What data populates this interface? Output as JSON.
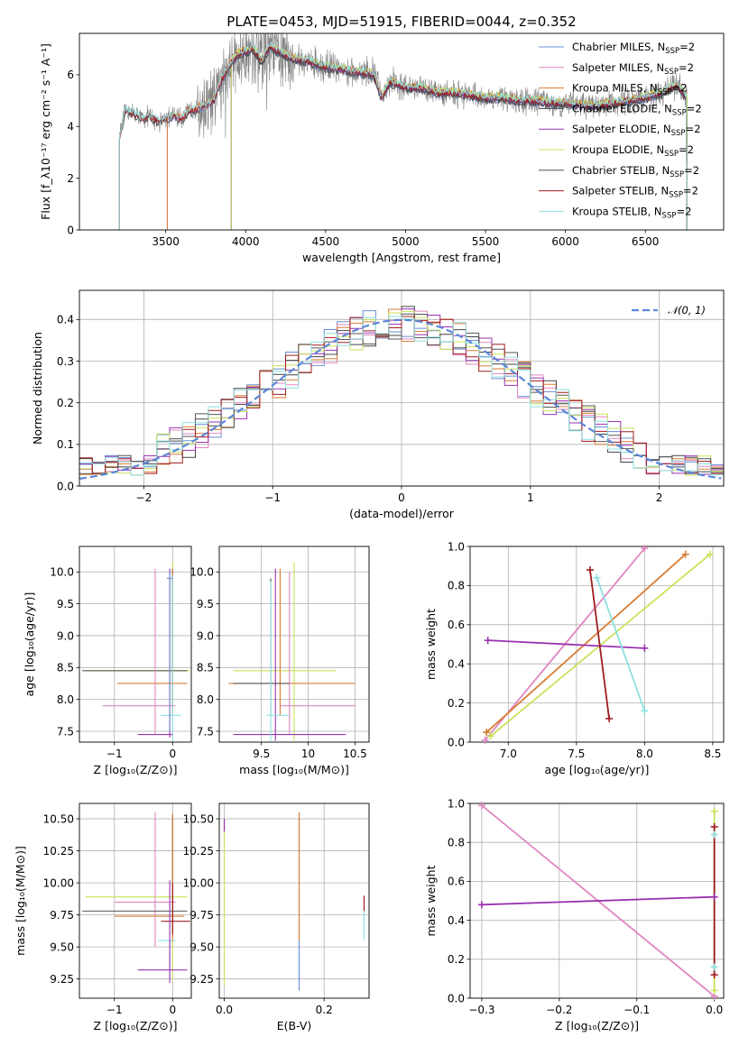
{
  "title": "PLATE=0453, MJD=51915, FIBERID=0044, z=0.352",
  "series_colors": {
    "Chabrier MILES": "#6a8fd4",
    "Salpeter MILES": "#e086c0",
    "Kroupa MILES": "#d97c33",
    "Chabrier ELODIE": "#444444",
    "Salpeter ELODIE": "#9a32b0",
    "Kroupa ELODIE": "#c9e35a",
    "Chabrier STELIB": "#555555",
    "Salpeter STELIB": "#a01d20",
    "Kroupa STELIB": "#8ee0e0"
  },
  "chart_data": [
    {
      "id": "spectrum",
      "type": "line",
      "xlabel": "wavelength [Angstrom, rest frame]",
      "ylabel": "Flux [f_λ10⁻¹⁷ erg cm⁻² s⁻¹ A⁻¹]",
      "xlim": [
        2960,
        6990
      ],
      "ylim": [
        0,
        7.6
      ],
      "xticks": [
        3500,
        4000,
        4500,
        5000,
        5500,
        6000,
        6500
      ],
      "yticks": [
        0,
        2,
        4,
        6
      ],
      "legend_placement": "upper-right",
      "legend": [
        "Chabrier MILES, N_SSP=2",
        "Salpeter MILES, N_SSP=2",
        "Kroupa MILES, N_SSP=2",
        "Chabrier ELODIE, N_SSP=2",
        "Salpeter ELODIE, N_SSP=2",
        "Kroupa ELODIE, N_SSP=2",
        "Chabrier STELIB, N_SSP=2",
        "Salpeter STELIB, N_SSP=2",
        "Kroupa STELIB, N_SSP=2"
      ],
      "data_color": "#808080",
      "data_range": [
        3210,
        6760
      ],
      "model_envelope": {
        "x": [
          3210,
          3250,
          3300,
          3350,
          3400,
          3450,
          3500,
          3550,
          3600,
          3650,
          3700,
          3750,
          3800,
          3850,
          3900,
          3950,
          4000,
          4050,
          4100,
          4150,
          4200,
          4300,
          4400,
          4500,
          4600,
          4700,
          4800,
          4850,
          4900,
          5000,
          5100,
          5200,
          5300,
          5400,
          5500,
          5600,
          5700,
          5800,
          5900,
          6000,
          6100,
          6200,
          6300,
          6400,
          6500,
          6600,
          6700,
          6760
        ],
        "y": [
          3.6,
          4.6,
          4.5,
          4.3,
          4.4,
          4.2,
          4.3,
          4.4,
          4.3,
          4.6,
          4.7,
          4.8,
          5.0,
          5.8,
          6.4,
          6.8,
          6.9,
          7.0,
          6.5,
          7.1,
          6.9,
          6.6,
          6.5,
          6.3,
          6.2,
          6.1,
          6.0,
          5.1,
          5.7,
          5.5,
          5.5,
          5.3,
          5.3,
          5.2,
          5.1,
          5.1,
          5.0,
          5.0,
          4.9,
          4.9,
          4.8,
          4.8,
          4.9,
          5.0,
          5.1,
          5.3,
          5.6,
          5.1
        ]
      },
      "model_cutoffs": {
        "Kroupa MILES": 3510,
        "Salpeter MILES": 3510,
        "Chabrier MILES": 3510,
        "Kroupa ELODIE": 3910,
        "Salpeter ELODIE": 3910,
        "Chabrier ELODIE": 3910
      }
    },
    {
      "id": "residuals",
      "type": "bar",
      "xlabel": "(data-model)/error",
      "ylabel": "Normed distribution",
      "xlim": [
        -2.5,
        2.5
      ],
      "ylim": [
        0,
        0.47
      ],
      "xticks": [
        -2,
        -1,
        0,
        1,
        2
      ],
      "yticks": [
        0.0,
        0.1,
        0.2,
        0.3,
        0.4
      ],
      "grid": true,
      "legend": [
        "𝒩(0, 1)"
      ],
      "legend_placement": "upper-right",
      "gaussian": {
        "mu": 0,
        "sigma": 1,
        "color": "#5b87d9"
      },
      "bin_width": 0.1
    },
    {
      "id": "age_vs_Z",
      "type": "scatter",
      "xlabel": "Z [log₁₀(Z/Z⊙)]",
      "ylabel": "age  [log₁₀(age/yr)]",
      "xlim": [
        -1.6,
        0.32
      ],
      "ylim": [
        7.33,
        10.4
      ],
      "xticks": [
        -1,
        0
      ],
      "yticks": [
        7.5,
        8.0,
        8.5,
        9.0,
        9.5,
        10.0
      ],
      "grid": true,
      "points": [
        {
          "series": "Kroupa ELODIE",
          "x": -0.0,
          "y": 8.45,
          "xerr": [
            1.5,
            0.3
          ],
          "yerr": [
            0.6,
            1.7
          ]
        },
        {
          "series": "Chabrier STELIB",
          "x": 0.0,
          "y": 8.45,
          "xerr": [
            1.55,
            0.25
          ],
          "yerr": [
            0.6,
            1.6
          ]
        },
        {
          "series": "Kroupa MILES",
          "x": 0.0,
          "y": 8.25,
          "xerr": [
            0.95,
            0.25
          ],
          "yerr": [
            0.5,
            1.8
          ]
        },
        {
          "series": "Salpeter MILES",
          "x": -0.3,
          "y": 7.9,
          "xerr": [
            0.9,
            0.35
          ],
          "yerr": [
            0.45,
            2.15
          ]
        },
        {
          "series": "Kroupa STELIB",
          "x": 0.0,
          "y": 7.75,
          "xerr": [
            0.2,
            0.15
          ],
          "yerr": [
            0.4,
            2.2
          ]
        },
        {
          "series": "Salpeter ELODIE",
          "x": -0.05,
          "y": 7.45,
          "xerr": [
            0.55,
            0.05
          ],
          "yerr": [
            0.05,
            2.6
          ]
        },
        {
          "series": "Chabrier MILES",
          "x": -0.05,
          "y": 9.9,
          "xerr": [
            0.05,
            0.05
          ],
          "yerr": [
            2.4,
            0.1
          ]
        }
      ]
    },
    {
      "id": "age_vs_mass",
      "type": "scatter",
      "xlabel": "mass [log₁₀(M/M⊙)]",
      "ylabel": "",
      "xlim": [
        9.05,
        10.65
      ],
      "ylim": [
        7.33,
        10.4
      ],
      "xticks": [
        9.5,
        10.0,
        10.5
      ],
      "yticks": [
        7.5,
        8.0,
        8.5,
        9.0,
        9.5,
        10.0
      ],
      "grid": true,
      "points": [
        {
          "series": "Kroupa ELODIE",
          "x": 9.85,
          "y": 8.45,
          "xerr": [
            0.65,
            0.45
          ],
          "yerr": [
            1.1,
            1.7
          ]
        },
        {
          "series": "Kroupa MILES",
          "x": 9.7,
          "y": 8.25,
          "xerr": [
            0.55,
            0.8
          ],
          "yerr": [
            0.5,
            1.8
          ]
        },
        {
          "series": "Salpeter MILES",
          "x": 9.8,
          "y": 7.9,
          "xerr": [
            0.1,
            0.7
          ],
          "yerr": [
            0.45,
            2.1
          ]
        },
        {
          "series": "Salpeter ELODIE",
          "x": 9.65,
          "y": 7.45,
          "xerr": [
            0.45,
            0.75
          ],
          "yerr": [
            0.1,
            2.6
          ]
        },
        {
          "series": "Chabrier STELIB",
          "x": 9.6,
          "y": 8.25,
          "xerr": [
            0.4,
            0.2
          ],
          "yerr": [
            0.5,
            1.65
          ]
        },
        {
          "series": "Kroupa STELIB",
          "x": 9.6,
          "y": 7.75,
          "xerr": [
            0.05,
            0.2
          ],
          "yerr": [
            0.4,
            2.1
          ]
        }
      ]
    },
    {
      "id": "weight_vs_age",
      "type": "line",
      "xlabel": "age  [log₁₀(age/yr)]",
      "ylabel": "mass weight",
      "xlim": [
        6.72,
        8.58
      ],
      "ylim": [
        0.0,
        1.0
      ],
      "xticks": [
        7.0,
        7.5,
        8.0,
        8.5
      ],
      "yticks": [
        0.0,
        0.2,
        0.4,
        0.6,
        0.8,
        1.0
      ],
      "grid": true,
      "series": [
        {
          "name": "Salpeter MILES",
          "x": [
            6.83,
            8.0
          ],
          "y": [
            0.01,
            0.99
          ]
        },
        {
          "name": "Kroupa MILES",
          "x": [
            6.84,
            8.3
          ],
          "y": [
            0.05,
            0.96
          ]
        },
        {
          "name": "Kroupa ELODIE",
          "x": [
            6.87,
            8.48
          ],
          "y": [
            0.03,
            0.96
          ]
        },
        {
          "name": "Salpeter ELODIE",
          "x": [
            6.85,
            8.0
          ],
          "y": [
            0.52,
            0.48
          ]
        },
        {
          "name": "Salpeter STELIB",
          "x": [
            7.6,
            7.74
          ],
          "y": [
            0.88,
            0.12
          ]
        },
        {
          "name": "Kroupa STELIB",
          "x": [
            7.65,
            8.0
          ],
          "y": [
            0.84,
            0.16
          ]
        }
      ]
    },
    {
      "id": "mass_vs_Z",
      "type": "scatter",
      "xlabel": "Z [log₁₀(Z/Z⊙)]",
      "ylabel": "mass [log₁₀(M/M⊙)]",
      "xlim": [
        -1.6,
        0.32
      ],
      "ylim": [
        9.1,
        10.62
      ],
      "xticks": [
        -1,
        0
      ],
      "yticks": [
        9.25,
        9.5,
        9.75,
        10.0,
        10.25,
        10.5
      ],
      "grid": true,
      "points": [
        {
          "series": "Kroupa ELODIE",
          "x": 0.0,
          "y": 9.89,
          "xerr": [
            1.5,
            0.25
          ],
          "yerr": [
            0.65,
            0.6
          ]
        },
        {
          "series": "Salpeter MILES",
          "x": -0.3,
          "y": 9.85,
          "xerr": [
            0.7,
            0.35
          ],
          "yerr": [
            0.35,
            0.7
          ]
        },
        {
          "series": "Chabrier STELIB",
          "x": 0.0,
          "y": 9.78,
          "xerr": [
            1.55,
            0.25
          ],
          "yerr": [
            0.2,
            0.75
          ]
        },
        {
          "series": "Kroupa MILES",
          "x": 0.0,
          "y": 9.74,
          "xerr": [
            1.0,
            0.2
          ],
          "yerr": [
            0.2,
            0.8
          ]
        },
        {
          "series": "Salpeter STELIB",
          "x": 0.0,
          "y": 9.7,
          "xerr": [
            0.2,
            0.3
          ],
          "yerr": [
            0.1,
            0.3
          ]
        },
        {
          "series": "Kroupa STELIB",
          "x": -0.05,
          "y": 9.55,
          "xerr": [
            0.2,
            0.1
          ],
          "yerr": [
            0.3,
            0.3
          ]
        },
        {
          "series": "Salpeter ELODIE",
          "x": -0.05,
          "y": 9.32,
          "xerr": [
            0.55,
            0.3
          ],
          "yerr": [
            0.1,
            0.7
          ]
        }
      ]
    },
    {
      "id": "mass_vs_ebv",
      "type": "scatter",
      "xlabel": "E(B-V)",
      "ylabel": "",
      "xlim": [
        -0.01,
        0.29
      ],
      "ylim": [
        9.1,
        10.62
      ],
      "xticks": [
        0.0,
        0.2
      ],
      "yticks": [
        9.25,
        9.5,
        9.75,
        10.0,
        10.25,
        10.5
      ],
      "grid": true,
      "vbars": [
        {
          "series": "Kroupa ELODIE",
          "x": 0.0,
          "ymin": 9.2,
          "ymax": 10.45
        },
        {
          "series": "Salpeter ELODIE",
          "x": 0.0,
          "ymin": 10.4,
          "ymax": 10.5
        },
        {
          "series": "Kroupa MILES",
          "x": 0.15,
          "ymin": 9.55,
          "ymax": 10.55
        },
        {
          "series": "Chabrier MILES",
          "x": 0.15,
          "ymin": 9.16,
          "ymax": 9.55
        },
        {
          "series": "Salpeter STELIB",
          "x": 0.28,
          "ymin": 9.78,
          "ymax": 9.9
        },
        {
          "series": "Kroupa STELIB",
          "x": 0.28,
          "ymin": 9.55,
          "ymax": 9.78
        }
      ]
    },
    {
      "id": "weight_vs_Z",
      "type": "line",
      "xlabel": "Z [log₁₀(Z/Z⊙)]",
      "ylabel": "mass weight",
      "xlim": [
        -0.315,
        0.012
      ],
      "ylim": [
        0.0,
        1.0
      ],
      "xticks": [
        -0.3,
        -0.2,
        -0.1,
        0.0
      ],
      "yticks": [
        0.0,
        0.2,
        0.4,
        0.6,
        0.8,
        1.0
      ],
      "grid": true,
      "series": [
        {
          "name": "Salpeter MILES",
          "x": [
            -0.3,
            0.0
          ],
          "y": [
            0.99,
            0.01
          ]
        },
        {
          "name": "Salpeter ELODIE",
          "x": [
            -0.3,
            0.0
          ],
          "y": [
            0.48,
            0.52
          ]
        },
        {
          "name": "Kroupa STELIB",
          "x": [
            0.0,
            0.0
          ],
          "y": [
            0.16,
            0.84
          ]
        },
        {
          "name": "Kroupa ELODIE",
          "x": [
            0.0,
            0.0
          ],
          "y": [
            0.04,
            0.96
          ]
        },
        {
          "name": "Salpeter STELIB",
          "x": [
            0.0,
            0.0
          ],
          "y": [
            0.12,
            0.88
          ]
        }
      ]
    }
  ]
}
